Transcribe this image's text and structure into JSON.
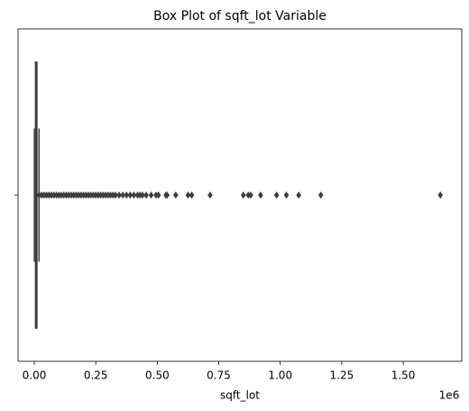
{
  "chart_data": {
    "type": "box",
    "title": "Box Plot of sqft_lot Variable",
    "x_label": "sqft_lot",
    "x_offset_label": "1e6",
    "categories": [
      null
    ],
    "box": {
      "whislo": 520,
      "q1": 5040,
      "med": 7618,
      "q3": 10688,
      "whishi": 19141
    },
    "outliers": [
      20000,
      30000,
      40000,
      50000,
      60000,
      70000,
      80000,
      90000,
      100000,
      110000,
      120000,
      130000,
      140000,
      150000,
      160000,
      170000,
      180000,
      190000,
      200000,
      210000,
      220000,
      230000,
      240000,
      250000,
      260000,
      270000,
      280000,
      290000,
      300000,
      310000,
      320000,
      330000,
      345000,
      360000,
      375000,
      390000,
      405000,
      420000,
      430000,
      440000,
      455000,
      475000,
      495000,
      505000,
      535000,
      540000,
      575000,
      625000,
      640000,
      715000,
      850000,
      870000,
      880000,
      920000,
      985000,
      1025000,
      1075000,
      1165000,
      1651000
    ],
    "color": "#3d3d3d",
    "box_color": "#808080",
    "xlim": [
      -66000,
      1738000
    ],
    "xticks": [
      {
        "value": 0,
        "label": "0.00"
      },
      {
        "value": 250000,
        "label": "0.25"
      },
      {
        "value": 500000,
        "label": "0.50"
      },
      {
        "value": 750000,
        "label": "0.75"
      },
      {
        "value": 1000000,
        "label": "1.00"
      },
      {
        "value": 1250000,
        "label": "1.25"
      },
      {
        "value": 1500000,
        "label": "1.50"
      }
    ]
  }
}
